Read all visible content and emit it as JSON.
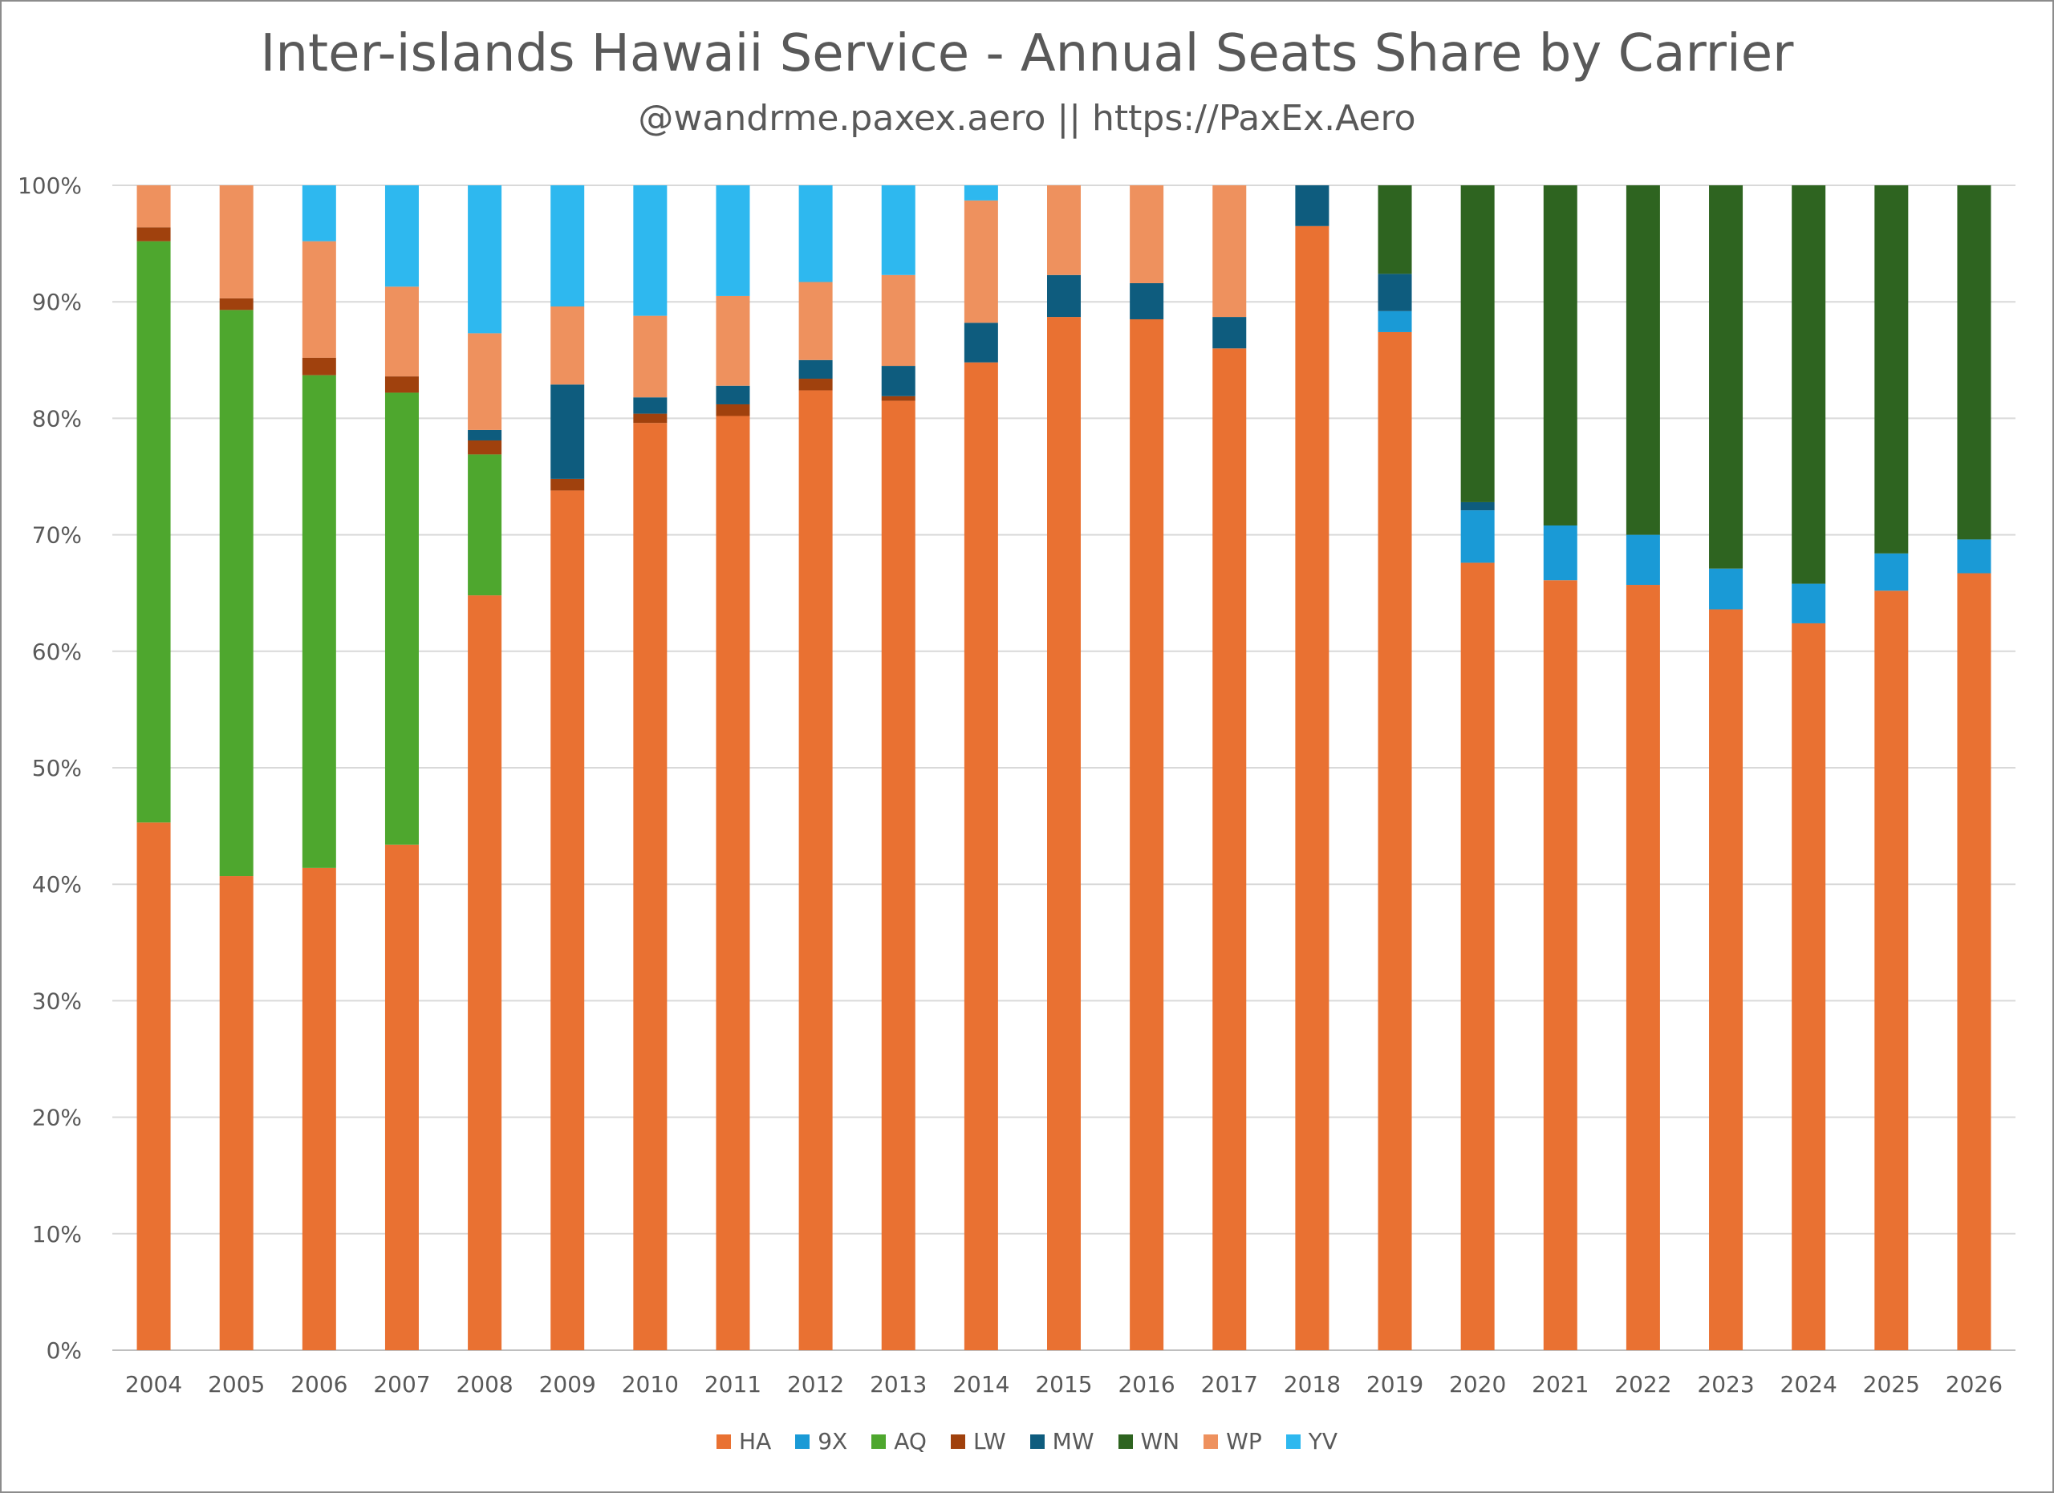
{
  "chart_data": {
    "type": "bar",
    "stacked": true,
    "title": "Inter-islands Hawaii Service - Annual Seats Share by Carrier",
    "subtitle": "@wandrme.paxex.aero || https://PaxEx.Aero",
    "xlabel": "",
    "ylabel": "",
    "ylim": [
      0,
      100
    ],
    "y_ticks": [
      "0%",
      "10%",
      "20%",
      "30%",
      "40%",
      "50%",
      "60%",
      "70%",
      "80%",
      "90%",
      "100%"
    ],
    "grid": true,
    "legend_position": "bottom",
    "categories": [
      "2004",
      "2005",
      "2006",
      "2007",
      "2008",
      "2009",
      "2010",
      "2011",
      "2012",
      "2013",
      "2014",
      "2015",
      "2016",
      "2017",
      "2018",
      "2019",
      "2020",
      "2021",
      "2022",
      "2023",
      "2024",
      "2025",
      "2026"
    ],
    "series": [
      {
        "name": "HA",
        "color": "#E97132",
        "values": [
          45.3,
          40.7,
          41.4,
          43.4,
          64.8,
          73.8,
          79.6,
          80.2,
          82.4,
          81.5,
          84.8,
          88.7,
          88.5,
          86.0,
          96.5,
          87.4,
          67.6,
          66.1,
          65.7,
          63.6,
          62.4,
          65.2,
          66.7
        ]
      },
      {
        "name": "9X",
        "color": "#1A9AD6",
        "values": [
          0,
          0,
          0,
          0,
          0,
          0,
          0,
          0,
          0,
          0,
          0,
          0,
          0,
          0,
          0,
          1.8,
          4.5,
          4.7,
          4.3,
          3.5,
          3.4,
          3.2,
          2.9
        ]
      },
      {
        "name": "AQ",
        "color": "#4EA72E",
        "values": [
          49.9,
          48.6,
          42.3,
          38.8,
          12.1,
          0,
          0,
          0,
          0,
          0,
          0,
          0,
          0,
          0,
          0,
          0,
          0,
          0,
          0,
          0,
          0,
          0,
          0
        ]
      },
      {
        "name": "LW",
        "color": "#A0410D",
        "values": [
          1.2,
          1.0,
          1.5,
          1.4,
          1.2,
          1.0,
          0.8,
          1.0,
          1.0,
          0.4,
          0,
          0,
          0,
          0,
          0,
          0,
          0,
          0,
          0,
          0,
          0,
          0,
          0
        ]
      },
      {
        "name": "MW",
        "color": "#0E5C7E",
        "values": [
          0,
          0,
          0,
          0,
          0.9,
          8.1,
          1.4,
          1.6,
          1.6,
          2.6,
          3.4,
          3.6,
          3.1,
          2.7,
          3.5,
          3.2,
          0.7,
          0,
          0,
          0,
          0,
          0,
          0
        ]
      },
      {
        "name": "WN",
        "color": "#2E6420",
        "values": [
          0,
          0,
          0,
          0,
          0,
          0,
          0,
          0,
          0,
          0,
          0,
          0,
          0,
          0,
          0,
          7.6,
          27.2,
          29.2,
          30.0,
          32.9,
          34.2,
          31.6,
          30.4
        ]
      },
      {
        "name": "WP",
        "color": "#EE915E",
        "values": [
          3.6,
          9.7,
          10.0,
          7.7,
          8.3,
          6.7,
          7.0,
          7.7,
          6.7,
          7.8,
          10.5,
          7.7,
          8.4,
          11.3,
          0,
          0,
          0,
          0,
          0,
          0,
          0,
          0,
          0
        ]
      },
      {
        "name": "YV",
        "color": "#2EB8EF",
        "values": [
          0,
          0,
          4.8,
          8.7,
          12.7,
          10.4,
          11.2,
          9.5,
          8.3,
          7.7,
          1.3,
          0,
          0,
          0,
          0,
          0,
          0,
          0,
          0,
          0,
          0,
          0,
          0
        ]
      }
    ]
  }
}
